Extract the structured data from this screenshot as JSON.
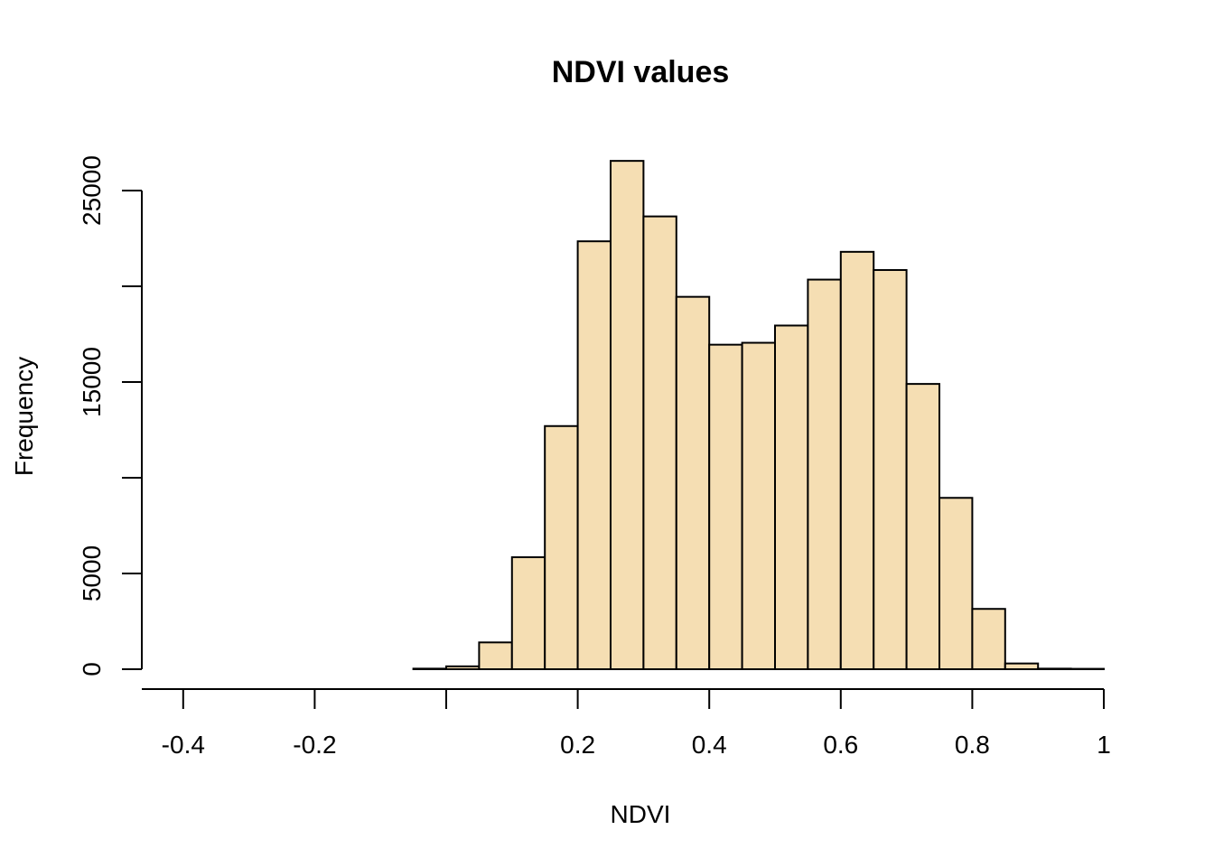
{
  "chart_data": {
    "type": "bar",
    "title": "NDVI values",
    "xlabel": "NDVI",
    "ylabel": "Frequency",
    "xlim": [
      -0.5,
      1.0
    ],
    "ylim": [
      0,
      26500
    ],
    "bar_fill": "#F5DEB3",
    "bar_stroke": "#000000",
    "x_ticks": [
      -0.4,
      -0.2,
      0.0,
      0.2,
      0.4,
      0.6,
      0.8,
      1.0
    ],
    "x_tick_labels": [
      "-0.4",
      "-0.2",
      "",
      "0.2",
      "0.4",
      "0.6",
      "0.8",
      "1"
    ],
    "y_ticks": [
      0,
      5000,
      10000,
      15000,
      20000,
      25000
    ],
    "y_tick_labels": [
      "0",
      "5000",
      "",
      "15000",
      "",
      "25000"
    ],
    "bin_edges": [
      -0.05,
      0.0,
      0.05,
      0.1,
      0.15,
      0.2,
      0.25,
      0.3,
      0.35,
      0.4,
      0.45,
      0.5,
      0.55,
      0.6,
      0.65,
      0.7,
      0.75,
      0.8,
      0.85,
      0.9,
      0.95,
      1.0
    ],
    "values": [
      30,
      150,
      1400,
      5850,
      12700,
      22350,
      26550,
      23650,
      19450,
      16950,
      17050,
      17950,
      20350,
      21800,
      20850,
      14900,
      8950,
      3150,
      300,
      30,
      20
    ]
  }
}
